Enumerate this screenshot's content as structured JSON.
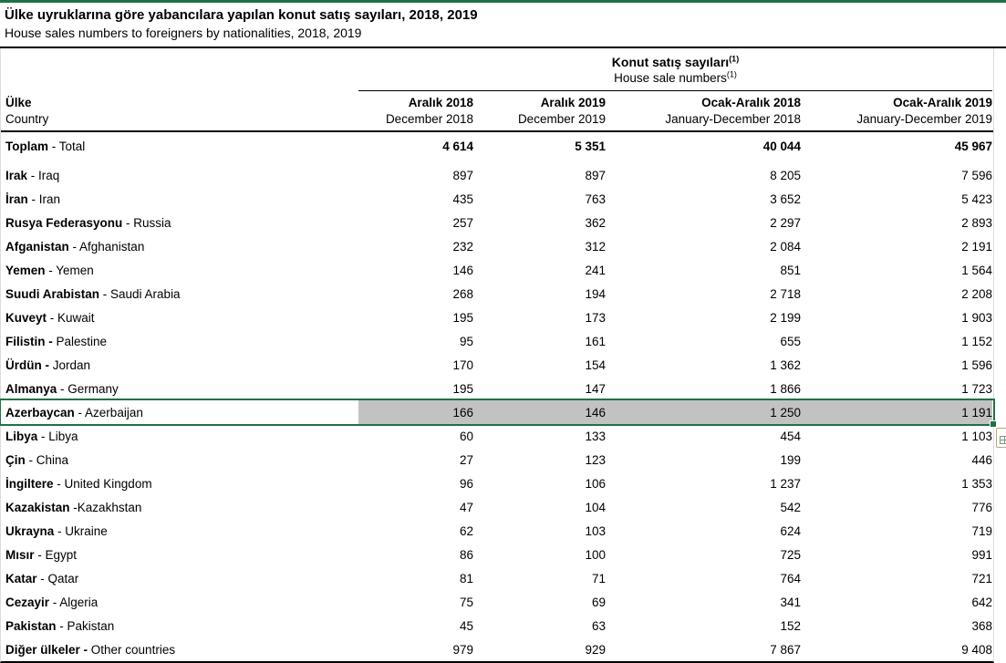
{
  "page": {
    "title_tr": "Ülke uyruklarına göre yabancılara yapılan konut satış sayıları, 2018, 2019",
    "title_en": "House sales numbers to foreigners by nationalities, 2018, 2019"
  },
  "table": {
    "group_header": {
      "tr": "Konut satış sayıları",
      "en": "House sale numbers",
      "footnote_marker": "(1)"
    },
    "row_header": {
      "tr": "Ülke",
      "en": "Country"
    },
    "columns": [
      {
        "tr": "Aralık 2018",
        "en": "December 2018"
      },
      {
        "tr": "Aralık 2019",
        "en": "December 2019"
      },
      {
        "tr": "Ocak-Aralık 2018",
        "en": "January-December 2018"
      },
      {
        "tr": "Ocak-Aralık 2019",
        "en": "January-December 2019"
      }
    ],
    "rows": [
      {
        "bold": "Toplam",
        "rest": " - Total",
        "values": [
          "4 614",
          "5 351",
          "40 044",
          "45 967"
        ],
        "is_total": true
      },
      {
        "bold": "Irak",
        "rest": " - Iraq",
        "values": [
          "897",
          "897",
          "8 205",
          "7 596"
        ]
      },
      {
        "bold": "İran",
        "rest": " - Iran",
        "values": [
          "435",
          "763",
          "3 652",
          "5 423"
        ]
      },
      {
        "bold": "Rusya Federasyonu",
        "rest": " - Russia",
        "values": [
          "257",
          "362",
          "2 297",
          "2 893"
        ]
      },
      {
        "bold": "Afganistan",
        "rest": " - Afghanistan",
        "values": [
          "232",
          "312",
          "2 084",
          "2 191"
        ]
      },
      {
        "bold": "Yemen",
        "rest": " - Yemen",
        "values": [
          "146",
          "241",
          "851",
          "1 564"
        ]
      },
      {
        "bold": "Suudi Arabistan",
        "rest": " - Saudi Arabia",
        "values": [
          "268",
          "194",
          "2 718",
          "2 208"
        ]
      },
      {
        "bold": "Kuveyt",
        "rest": " - Kuwait",
        "values": [
          "195",
          "173",
          "2 199",
          "1 903"
        ]
      },
      {
        "bold": "Filistin -",
        "rest": " Palestine",
        "values": [
          "95",
          "161",
          "655",
          "1 152"
        ]
      },
      {
        "bold": "Ürdün -",
        "rest": " Jordan",
        "values": [
          "170",
          "154",
          "1 362",
          "1 596"
        ]
      },
      {
        "bold": "Almanya",
        "rest": " - Germany",
        "values": [
          "195",
          "147",
          "1 866",
          "1 723"
        ]
      },
      {
        "bold": "Azerbaycan",
        "rest": " - Azerbaijan",
        "values": [
          "166",
          "146",
          "1 250",
          "1 191"
        ],
        "selected": true
      },
      {
        "bold": "Libya",
        "rest": " - Libya",
        "values": [
          "60",
          "133",
          "454",
          "1 103"
        ]
      },
      {
        "bold": "Çin",
        "rest": " - China",
        "values": [
          "27",
          "123",
          "199",
          "446"
        ]
      },
      {
        "bold": "İngiltere",
        "rest": " - United Kingdom",
        "values": [
          "96",
          "106",
          "1 237",
          "1 353"
        ]
      },
      {
        "bold": "Kazakistan",
        "rest": " -Kazakhstan",
        "values": [
          "47",
          "104",
          "542",
          "776"
        ]
      },
      {
        "bold": "Ukrayna",
        "rest": " - Ukraine",
        "values": [
          "62",
          "103",
          "624",
          "719"
        ]
      },
      {
        "bold": "Mısır",
        "rest": " - Egypt",
        "values": [
          "86",
          "100",
          "725",
          "991"
        ]
      },
      {
        "bold": "Katar",
        "rest": " - Qatar",
        "values": [
          "81",
          "71",
          "764",
          "721"
        ]
      },
      {
        "bold": "Cezayir",
        "rest": " - Algeria",
        "values": [
          "75",
          "69",
          "341",
          "642"
        ]
      },
      {
        "bold": "Pakistan",
        "rest": " - Pakistan",
        "values": [
          "45",
          "63",
          "152",
          "368"
        ]
      },
      {
        "bold": "Diğer ülkeler -",
        "rest": " Other countries",
        "values": [
          "979",
          "929",
          "7 867",
          "9 408"
        ]
      }
    ]
  },
  "selection": {
    "selected_row": "Azerbaycan - Azerbaijan",
    "border_color": "#1f7145",
    "fill_color": "#c2c2c2",
    "quick_analysis_icon": "lightning-grid-icon"
  },
  "colors": {
    "accent_green": "#1f7145",
    "rule_black": "#000000",
    "gridline_gray": "#dcdcdc"
  }
}
